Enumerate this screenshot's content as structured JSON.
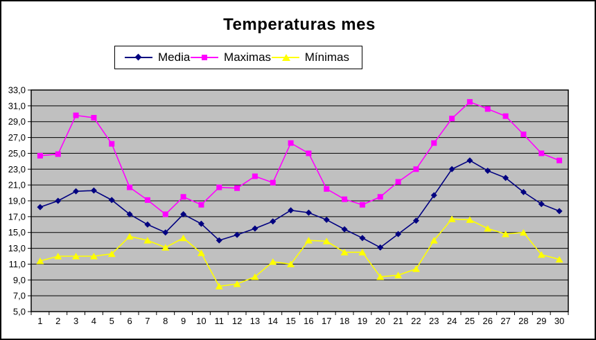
{
  "chart": {
    "background": "#FFFFFF",
    "plot_background": "#C0C0C0",
    "gridline_color": "#000000",
    "border_color": "#000000",
    "text_color": "#000000"
  },
  "chart_data": {
    "type": "line",
    "title": "Temperaturas mes",
    "xlabel": "",
    "ylabel": "",
    "categories": [
      1,
      2,
      3,
      4,
      5,
      6,
      7,
      8,
      9,
      10,
      11,
      12,
      13,
      14,
      15,
      16,
      17,
      18,
      19,
      20,
      21,
      22,
      23,
      24,
      25,
      26,
      27,
      28,
      29,
      30
    ],
    "series": [
      {
        "name": "Media",
        "color": "#000080",
        "marker": "diamond",
        "values": [
          18.2,
          19.0,
          20.2,
          20.3,
          19.1,
          17.3,
          16.0,
          15.0,
          17.3,
          16.1,
          14.0,
          14.7,
          15.5,
          16.4,
          17.8,
          17.5,
          16.6,
          15.4,
          14.3,
          13.1,
          14.8,
          16.5,
          19.7,
          23.0,
          24.1,
          22.8,
          21.9,
          20.1,
          18.6,
          17.7
        ]
      },
      {
        "name": "Maximas",
        "color": "#FF00FF",
        "marker": "square",
        "values": [
          24.7,
          24.9,
          29.8,
          29.5,
          26.2,
          20.7,
          19.1,
          17.3,
          19.5,
          18.5,
          20.7,
          20.6,
          22.1,
          21.3,
          26.3,
          25.0,
          20.5,
          19.2,
          18.5,
          19.5,
          21.4,
          23.0,
          26.3,
          29.4,
          31.5,
          30.6,
          29.7,
          27.4,
          25.0,
          24.1
        ]
      },
      {
        "name": "Mínimas",
        "color": "#FFFF00",
        "marker": "triangle",
        "values": [
          11.4,
          12.0,
          12.0,
          12.0,
          12.3,
          14.5,
          14.0,
          13.1,
          14.3,
          12.4,
          8.2,
          8.5,
          9.4,
          11.3,
          11.0,
          14.0,
          13.9,
          12.5,
          12.5,
          9.4,
          9.6,
          10.4,
          14.0,
          16.7,
          16.6,
          15.5,
          14.8,
          15.0,
          12.2,
          11.6
        ]
      }
    ],
    "ylim": [
      5,
      33
    ],
    "ytick_step": 2,
    "ytick_labels": [
      "33,0",
      "31,0",
      "29,0",
      "27,0",
      "25,0",
      "23,0",
      "21,0",
      "19,0",
      "17,0",
      "15,0",
      "13,0",
      "11,0",
      "9,0",
      "7,0",
      "5,0"
    ],
    "grid": true,
    "legend_position": "top"
  }
}
